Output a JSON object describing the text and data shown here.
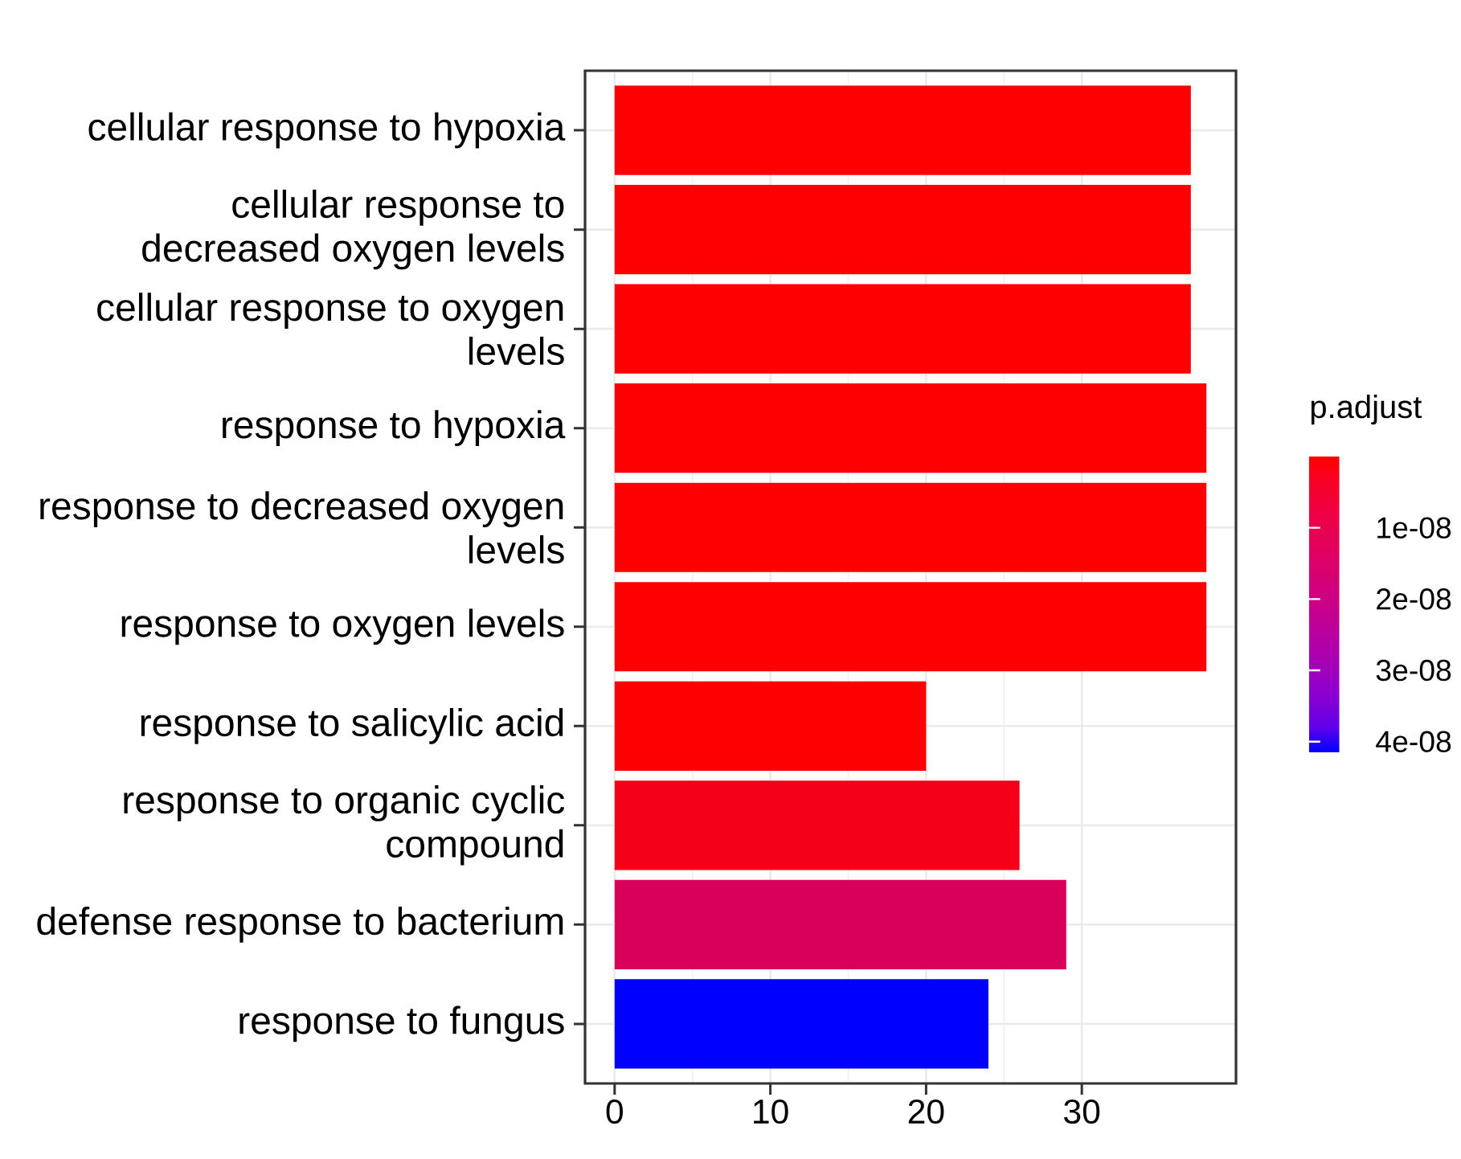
{
  "chart_data": {
    "type": "bar",
    "orientation": "horizontal",
    "categories": [
      "cellular response to hypoxia",
      "cellular response to decreased oxygen levels",
      "cellular response to oxygen levels",
      "response to hypoxia",
      "response to decreased oxygen levels",
      "response to oxygen levels",
      "response to salicylic acid",
      "response to organic cyclic compound",
      "defense response to bacterium",
      "response to fungus"
    ],
    "values": [
      37,
      37,
      37,
      38,
      38,
      38,
      20,
      26,
      29,
      24
    ],
    "colors": [
      "#ff0000",
      "#ff0000",
      "#ff0000",
      "#ff0000",
      "#ff0000",
      "#ff0000",
      "#ff0000",
      "#f50019",
      "#d8005a",
      "#0000ff"
    ],
    "xlim": [
      -1.9,
      39.9
    ],
    "xticks": [
      0,
      10,
      20,
      30
    ],
    "grid": true,
    "clabel": "p.adjust",
    "clim": [
      4.15e-08,
      0
    ],
    "cticks": [
      {
        "value": 1e-08,
        "label": "1e-08"
      },
      {
        "value": 2e-08,
        "label": "2e-08"
      },
      {
        "value": 3e-08,
        "label": "3e-08"
      },
      {
        "value": 4e-08,
        "label": "4e-08"
      }
    ]
  }
}
